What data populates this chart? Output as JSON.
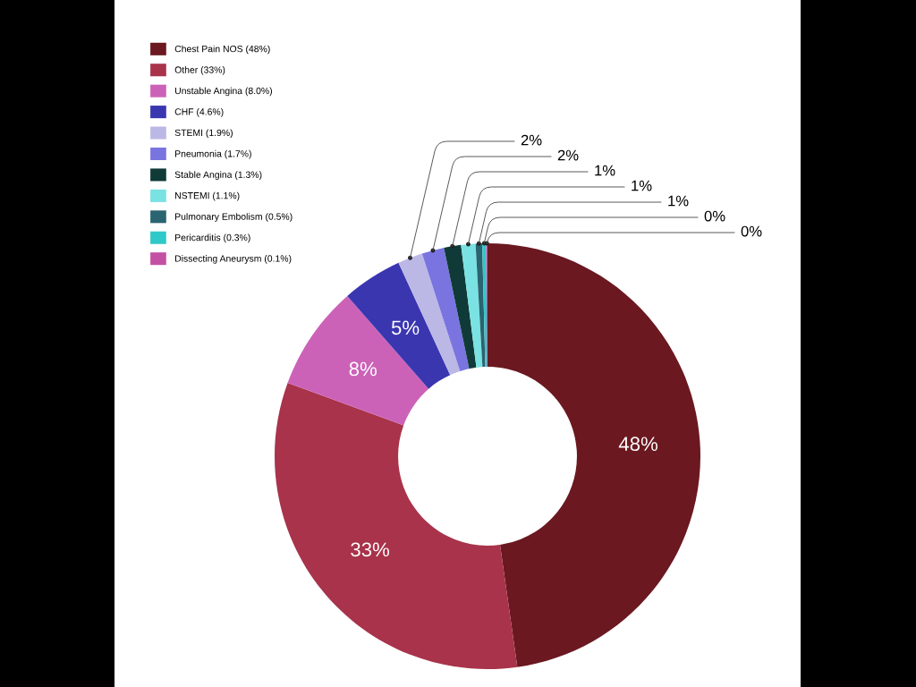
{
  "chart_data": {
    "type": "donut",
    "categories": [
      "Chest Pain NOS (48%)",
      "Other (33%)",
      "Unstable Angina (8.0%)",
      "CHF (4.6%)",
      "STEMI (1.9%)",
      "Pneumonia (1.7%)",
      "Stable Angina (1.3%)",
      "NSTEMI (1.1%)",
      "Pulmonary Embolism (0.5%)",
      "Pericarditis (0.3%)",
      "Dissecting Aneurysm (0.1%)"
    ],
    "values": [
      48,
      33,
      8.0,
      4.6,
      1.9,
      1.7,
      1.3,
      1.1,
      0.5,
      0.3,
      0.1
    ],
    "colors": [
      "#6b1820",
      "#a8334a",
      "#cc62b8",
      "#3a36b0",
      "#bcb8e6",
      "#7a74e0",
      "#0f3a38",
      "#7ae2e2",
      "#2a6470",
      "#30c8c8",
      "#c450a4"
    ],
    "value_labels": [
      "48%",
      "33%",
      "8%",
      "5%",
      "2%",
      "2%",
      "1%",
      "1%",
      "1%",
      "0%",
      "0%"
    ],
    "legend": "top left"
  }
}
